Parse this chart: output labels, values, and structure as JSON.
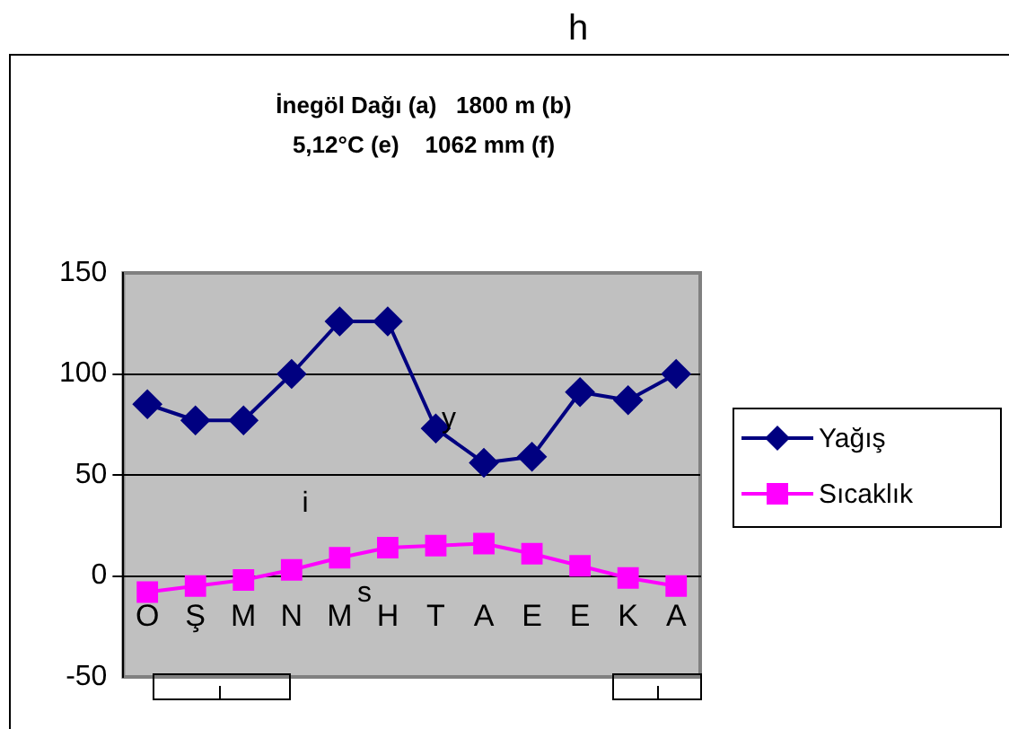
{
  "chart_data": {
    "type": "line",
    "title": [
      "İnegöl Dağı (a)   1800 m (b)",
      "5,12°C (e)    1062 mm (f)"
    ],
    "categories": [
      "O",
      "Ş",
      "M",
      "N",
      "M",
      "H",
      "T",
      "A",
      "E",
      "E",
      "K",
      "A"
    ],
    "series": [
      {
        "name": "Yağış",
        "color": "#000080",
        "marker": "diamond",
        "values": [
          85,
          77,
          77,
          100,
          126,
          126,
          73,
          56,
          59,
          91,
          87,
          100
        ]
      },
      {
        "name": "Sıcaklık",
        "color": "#ff00ff",
        "marker": "square",
        "values": [
          -8,
          -5,
          -2,
          3,
          9,
          14,
          15,
          16,
          11,
          5,
          -1,
          -5
        ]
      }
    ],
    "ylim": [
      -50,
      150
    ],
    "yticks": [
      -50,
      0,
      50,
      100,
      150
    ],
    "grid": "y",
    "legend": "right",
    "annotations": [
      "h",
      "i",
      "s",
      "y"
    ]
  }
}
